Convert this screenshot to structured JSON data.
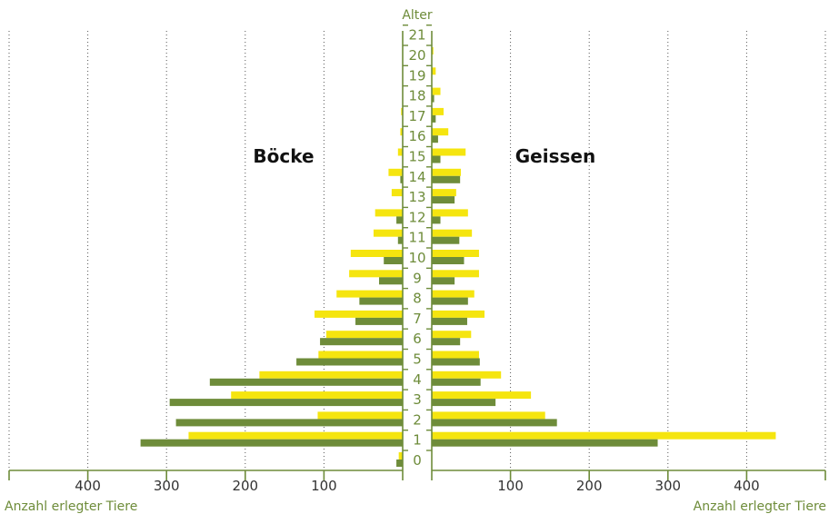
{
  "chart_data": {
    "type": "bar",
    "subtype": "population-pyramid",
    "center_axis_label": "Alter",
    "categories": [
      "0",
      "1",
      "2",
      "3",
      "4",
      "5",
      "6",
      "7",
      "8",
      "9",
      "10",
      "11",
      "12",
      "13",
      "14",
      "15",
      "16",
      "17",
      "18",
      "19",
      "20",
      "21"
    ],
    "left_panel_label": "Böcke",
    "right_panel_label": "Geissen",
    "xlabel_left": "Anzahl erlegter Tiere",
    "xlabel_right": "Anzahl erlegter Tiere",
    "x_ticks": [
      100,
      200,
      300,
      400
    ],
    "xlim": [
      0,
      500
    ],
    "grid": true,
    "colors": {
      "yellow": "#f5e50f",
      "green": "#6e8c3a",
      "axis": "#6e8c3a"
    },
    "series": [
      {
        "color": "yellow",
        "side": "left",
        "values": [
          5,
          272,
          108,
          218,
          182,
          107,
          97,
          112,
          84,
          68,
          66,
          37,
          35,
          14,
          18,
          6,
          3,
          2,
          0,
          0,
          0,
          0
        ]
      },
      {
        "color": "green",
        "side": "left",
        "values": [
          8,
          333,
          288,
          296,
          245,
          135,
          105,
          60,
          55,
          30,
          24,
          6,
          8,
          0,
          3,
          0,
          0,
          0,
          0,
          0,
          0,
          0
        ]
      },
      {
        "color": "yellow",
        "side": "right",
        "values": [
          0,
          437,
          144,
          126,
          88,
          60,
          50,
          67,
          54,
          60,
          60,
          51,
          46,
          31,
          37,
          43,
          21,
          15,
          11,
          5,
          2,
          0
        ]
      },
      {
        "color": "green",
        "side": "right",
        "values": [
          0,
          287,
          159,
          81,
          62,
          61,
          36,
          45,
          46,
          29,
          41,
          35,
          11,
          29,
          36,
          11,
          8,
          5,
          3,
          0,
          0,
          0
        ]
      }
    ]
  }
}
